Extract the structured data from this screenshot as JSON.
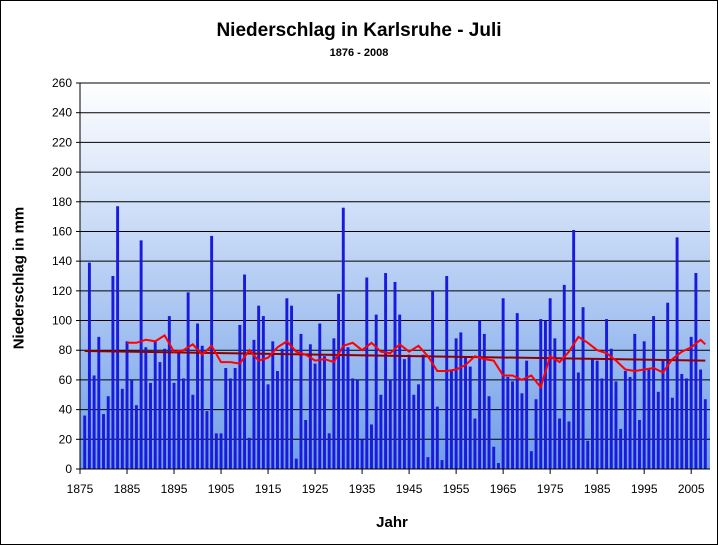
{
  "chart_data": {
    "type": "bar",
    "title": "Niederschlag in Karlsruhe - Juli",
    "subtitle": "1876 - 2008",
    "xlabel": "Jahr",
    "ylabel": "Niederschlag in mm",
    "xlim": [
      1875,
      2009
    ],
    "ylim": [
      0,
      260
    ],
    "yticks": [
      0,
      20,
      40,
      60,
      80,
      100,
      120,
      140,
      160,
      180,
      200,
      220,
      240,
      260
    ],
    "xticks": [
      1875,
      1885,
      1895,
      1905,
      1915,
      1925,
      1935,
      1945,
      1955,
      1965,
      1975,
      1985,
      1995,
      2005
    ],
    "grid": "horizontal",
    "legend": "none",
    "colors": {
      "bars": "#1a1adc",
      "moving_average": "#ff0000",
      "trend": "#8b0000",
      "plot_background_top": "#ffffff",
      "plot_background_bottom": "#6f9ee8"
    },
    "series": [
      {
        "type": "bar",
        "x": [
          1876,
          1877,
          1878,
          1879,
          1880,
          1881,
          1882,
          1883,
          1884,
          1885,
          1886,
          1887,
          1888,
          1889,
          1890,
          1891,
          1892,
          1893,
          1894,
          1895,
          1896,
          1897,
          1898,
          1899,
          1900,
          1901,
          1902,
          1903,
          1904,
          1905,
          1906,
          1907,
          1908,
          1909,
          1910,
          1911,
          1912,
          1913,
          1914,
          1915,
          1916,
          1917,
          1918,
          1919,
          1920,
          1921,
          1922,
          1923,
          1924,
          1925,
          1926,
          1927,
          1928,
          1929,
          1930,
          1931,
          1932,
          1933,
          1934,
          1935,
          1936,
          1937,
          1938,
          1939,
          1940,
          1941,
          1942,
          1943,
          1944,
          1945,
          1946,
          1947,
          1948,
          1949,
          1950,
          1951,
          1952,
          1953,
          1954,
          1955,
          1956,
          1957,
          1958,
          1959,
          1960,
          1961,
          1962,
          1963,
          1964,
          1965,
          1966,
          1967,
          1968,
          1969,
          1970,
          1971,
          1972,
          1973,
          1974,
          1975,
          1976,
          1977,
          1978,
          1979,
          1980,
          1981,
          1982,
          1983,
          1984,
          1985,
          1986,
          1987,
          1988,
          1989,
          1990,
          1991,
          1992,
          1993,
          1994,
          1995,
          1996,
          1997,
          1998,
          1999,
          2000,
          2001,
          2002,
          2003,
          2004,
          2005,
          2006,
          2007,
          2008
        ],
        "values": [
          36,
          139,
          63,
          89,
          37,
          49,
          130,
          177,
          54,
          86,
          60,
          43,
          154,
          82,
          58,
          86,
          72,
          81,
          103,
          58,
          79,
          61,
          119,
          50,
          98,
          83,
          39,
          157,
          24,
          24,
          68,
          61,
          68,
          97,
          131,
          21,
          87,
          110,
          103,
          57,
          86,
          66,
          81,
          115,
          110,
          7,
          91,
          33,
          84,
          71,
          98,
          76,
          24,
          88,
          118,
          176,
          82,
          61,
          60,
          20,
          129,
          30,
          104,
          50,
          132,
          60,
          126,
          104,
          74,
          77,
          50,
          57,
          77,
          8,
          120,
          42,
          6,
          130,
          67,
          88,
          92,
          76,
          69,
          34,
          100,
          91,
          49,
          15,
          4,
          115,
          62,
          59,
          105,
          51,
          73,
          12,
          47,
          101,
          100,
          115,
          88,
          34,
          124,
          32,
          161,
          65,
          109,
          19,
          74,
          73,
          61,
          101,
          81,
          59,
          27,
          66,
          62,
          91,
          33,
          86,
          67,
          103,
          52,
          74,
          112,
          48,
          156,
          64,
          61,
          89,
          132,
          67,
          47
        ]
      },
      {
        "type": "line",
        "x": [
          1885,
          1887,
          1889,
          1891,
          1893,
          1895,
          1897,
          1899,
          1901,
          1903,
          1905,
          1907,
          1909,
          1911,
          1913,
          1915,
          1917,
          1919,
          1921,
          1923,
          1925,
          1927,
          1929,
          1931,
          1933,
          1935,
          1937,
          1939,
          1941,
          1943,
          1945,
          1947,
          1949,
          1951,
          1953,
          1955,
          1957,
          1959,
          1961,
          1963,
          1965,
          1967,
          1969,
          1971,
          1973,
          1975,
          1977,
          1979,
          1981,
          1983,
          1985,
          1987,
          1989,
          1991,
          1993,
          1995,
          1997,
          1999,
          2001,
          2003,
          2005,
          2007,
          2008
        ],
        "values": [
          85,
          85,
          87,
          86,
          90,
          79,
          80,
          84,
          77,
          83,
          72,
          72,
          71,
          80,
          73,
          75,
          82,
          86,
          79,
          77,
          73,
          74,
          72,
          83,
          85,
          80,
          85,
          79,
          78,
          84,
          79,
          83,
          76,
          66,
          66,
          67,
          70,
          76,
          74,
          73,
          63,
          63,
          60,
          63,
          55,
          76,
          72,
          79,
          89,
          85,
          80,
          78,
          73,
          67,
          66,
          67,
          68,
          65,
          74,
          79,
          82,
          87,
          84
        ]
      },
      {
        "type": "line",
        "x": [
          1876,
          2008
        ],
        "values": [
          79.5,
          73.0
        ]
      }
    ]
  }
}
